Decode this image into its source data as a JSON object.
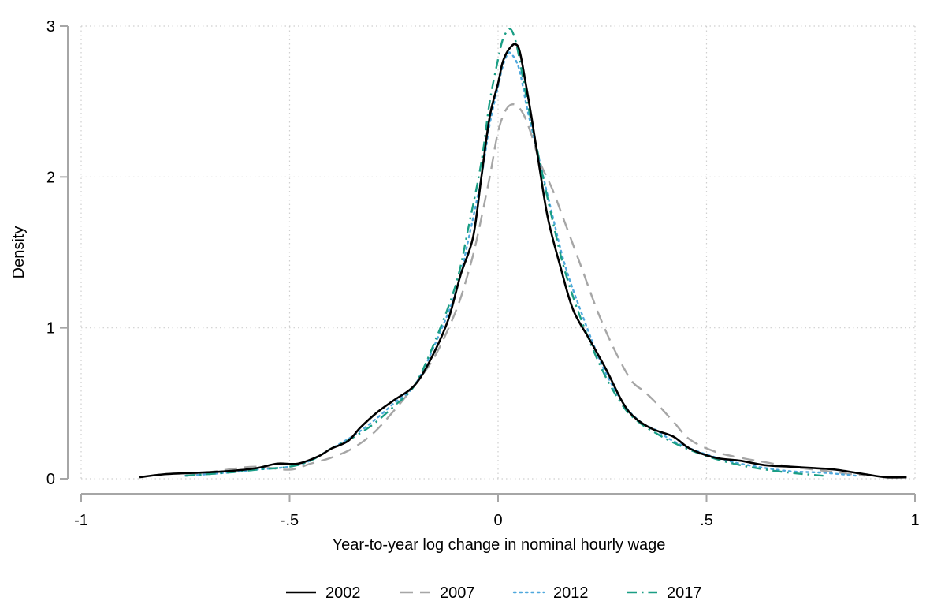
{
  "chart_data": {
    "type": "line",
    "title": "",
    "xlabel": "Year-to-year log change in nominal hourly wage",
    "ylabel": "Density",
    "xlim": [
      -1,
      1
    ],
    "ylim": [
      0,
      3
    ],
    "x_ticks": [
      -1,
      -0.5,
      0,
      0.5,
      1
    ],
    "x_tick_labels": [
      "-1",
      "-.5",
      "0",
      ".5",
      "1"
    ],
    "y_ticks": [
      0,
      1,
      2,
      3
    ],
    "y_tick_labels": [
      "0",
      "1",
      "2",
      "3"
    ],
    "grid": true,
    "legend_position": "bottom",
    "series": [
      {
        "name": "2002",
        "color": "#000000",
        "dash": "solid",
        "x": [
          -0.86,
          -0.8,
          -0.72,
          -0.65,
          -0.58,
          -0.53,
          -0.48,
          -0.43,
          -0.4,
          -0.36,
          -0.33,
          -0.29,
          -0.25,
          -0.2,
          -0.16,
          -0.12,
          -0.09,
          -0.06,
          -0.04,
          -0.02,
          0.0,
          0.01,
          0.02,
          0.03,
          0.04,
          0.05,
          0.06,
          0.08,
          0.1,
          0.12,
          0.15,
          0.18,
          0.22,
          0.26,
          0.3,
          0.33,
          0.37,
          0.42,
          0.46,
          0.52,
          0.58,
          0.64,
          0.7,
          0.76,
          0.81,
          0.88,
          0.93,
          0.98
        ],
        "y": [
          0.01,
          0.03,
          0.04,
          0.05,
          0.07,
          0.1,
          0.1,
          0.15,
          0.2,
          0.25,
          0.34,
          0.44,
          0.52,
          0.62,
          0.8,
          1.05,
          1.35,
          1.6,
          2.0,
          2.4,
          2.62,
          2.75,
          2.82,
          2.86,
          2.88,
          2.85,
          2.72,
          2.4,
          2.05,
          1.72,
          1.4,
          1.12,
          0.92,
          0.72,
          0.5,
          0.4,
          0.33,
          0.28,
          0.2,
          0.14,
          0.12,
          0.09,
          0.08,
          0.07,
          0.06,
          0.03,
          0.01,
          0.01
        ]
      },
      {
        "name": "2007",
        "color": "#a6a6a6",
        "dash": "long-dash",
        "x": [
          -0.75,
          -0.65,
          -0.58,
          -0.5,
          -0.45,
          -0.4,
          -0.35,
          -0.3,
          -0.25,
          -0.2,
          -0.15,
          -0.1,
          -0.07,
          -0.05,
          -0.02,
          0.0,
          0.02,
          0.04,
          0.06,
          0.08,
          0.1,
          0.13,
          0.16,
          0.2,
          0.24,
          0.28,
          0.32,
          0.35,
          0.38,
          0.42,
          0.46,
          0.52,
          0.58,
          0.64,
          0.7,
          0.76,
          0.82,
          0.88
        ],
        "y": [
          0.02,
          0.06,
          0.08,
          0.06,
          0.1,
          0.14,
          0.2,
          0.3,
          0.45,
          0.62,
          0.82,
          1.12,
          1.38,
          1.6,
          2.0,
          2.3,
          2.45,
          2.48,
          2.42,
          2.28,
          2.1,
          1.92,
          1.7,
          1.4,
          1.1,
          0.85,
          0.65,
          0.58,
          0.5,
          0.38,
          0.26,
          0.18,
          0.14,
          0.11,
          0.08,
          0.06,
          0.04,
          0.02
        ]
      },
      {
        "name": "2012",
        "color": "#4fa8dd",
        "dash": "dotted",
        "x": [
          -0.75,
          -0.65,
          -0.58,
          -0.5,
          -0.45,
          -0.4,
          -0.35,
          -0.3,
          -0.25,
          -0.2,
          -0.15,
          -0.1,
          -0.07,
          -0.04,
          -0.02,
          0.0,
          0.01,
          0.02,
          0.03,
          0.05,
          0.07,
          0.1,
          0.13,
          0.16,
          0.2,
          0.25,
          0.3,
          0.34,
          0.38,
          0.42,
          0.48,
          0.55,
          0.62,
          0.7,
          0.78,
          0.86
        ],
        "y": [
          0.02,
          0.04,
          0.06,
          0.08,
          0.12,
          0.2,
          0.28,
          0.38,
          0.5,
          0.62,
          0.9,
          1.25,
          1.6,
          2.0,
          2.35,
          2.6,
          2.72,
          2.8,
          2.82,
          2.72,
          2.45,
          2.1,
          1.75,
          1.42,
          1.1,
          0.75,
          0.5,
          0.38,
          0.32,
          0.25,
          0.18,
          0.12,
          0.08,
          0.05,
          0.04,
          0.02
        ]
      },
      {
        "name": "2017",
        "color": "#1a9e85",
        "dash": "dash-dot",
        "x": [
          -0.75,
          -0.65,
          -0.58,
          -0.5,
          -0.45,
          -0.4,
          -0.35,
          -0.3,
          -0.25,
          -0.2,
          -0.15,
          -0.1,
          -0.07,
          -0.04,
          -0.02,
          0.0,
          0.01,
          0.02,
          0.03,
          0.04,
          0.05,
          0.07,
          0.1,
          0.13,
          0.16,
          0.2,
          0.25,
          0.3,
          0.34,
          0.38,
          0.42,
          0.48,
          0.55,
          0.62,
          0.7,
          0.78
        ],
        "y": [
          0.02,
          0.04,
          0.06,
          0.08,
          0.12,
          0.2,
          0.27,
          0.36,
          0.48,
          0.62,
          0.92,
          1.3,
          1.68,
          2.1,
          2.5,
          2.78,
          2.9,
          2.96,
          2.98,
          2.92,
          2.8,
          2.5,
          2.1,
          1.72,
          1.38,
          1.05,
          0.72,
          0.48,
          0.37,
          0.3,
          0.24,
          0.17,
          0.11,
          0.07,
          0.04,
          0.02
        ]
      }
    ]
  }
}
